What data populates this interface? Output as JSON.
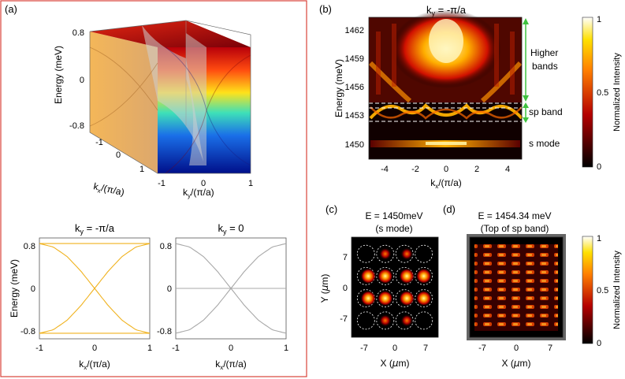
{
  "panels": {
    "a": {
      "label": "(a)",
      "surface": {
        "zlabel": "Energy (meV)",
        "zticks": [
          "0.8",
          "0",
          "-0.8"
        ],
        "xlabel_main": "k",
        "xlabel_sub": "x",
        "xlabel_tail": "/(π/a)",
        "xticks": [
          "-1",
          "0",
          "1"
        ],
        "ylabel_main": "k",
        "ylabel_sub": "y",
        "ylabel_tail": "/(π/a)",
        "yticks": [
          "-1",
          "0",
          "1"
        ]
      },
      "left_plot": {
        "title_main": "k",
        "title_sub": "y",
        "title_tail": " = -π/a",
        "ylabel": "Energy (meV)",
        "yticks": [
          "0.8",
          "0",
          "-0.8"
        ],
        "xticks": [
          "-1",
          "0",
          "1"
        ],
        "xlabel_main": "k",
        "xlabel_sub": "x",
        "xlabel_tail": "/(π/a)"
      },
      "right_plot": {
        "title_main": "k",
        "title_sub": "y",
        "title_tail": " = 0",
        "yticks": [
          "0.8",
          "0",
          "-0.8"
        ],
        "xticks": [
          "-1",
          "0",
          "1"
        ],
        "xlabel_main": "k",
        "xlabel_sub": "x",
        "xlabel_tail": "/(π/a)"
      }
    },
    "b": {
      "label": "(b)",
      "title_main": "k",
      "title_sub": "y",
      "title_tail": " = -π/a",
      "ylabel": "Energy (meV)",
      "yticks": [
        "1462",
        "1459",
        "1456",
        "1453",
        "1450"
      ],
      "xticks": [
        "-4",
        "-2",
        "0",
        "2",
        "4"
      ],
      "xlabel_main": "k",
      "xlabel_sub": "x",
      "xlabel_tail": "/(π/a)",
      "annotations": {
        "higher_line1": "Higher",
        "higher_line2": "bands",
        "sp": "sp band",
        "s": "s mode"
      },
      "colorbar": {
        "ticks": [
          "1",
          "0.5",
          "0"
        ],
        "label": "Normalized Intensity"
      }
    },
    "c": {
      "label": "(c)",
      "title_line1": "E = 1450meV",
      "title_line2": "(s mode)",
      "ylabel_main": "Y (",
      "ylabel_mu": "μ",
      "ylabel_tail": "m)",
      "yticks": [
        "7",
        "0",
        "-7"
      ],
      "xticks": [
        "-7",
        "0",
        "7"
      ],
      "xlabel_main": "X (",
      "xlabel_mu": "μ",
      "xlabel_tail": "m)"
    },
    "d": {
      "label": "(d)",
      "title_line1": "E = 1454.34 meV",
      "title_line2": "(Top of sp band)",
      "xticks": [
        "-7",
        "0",
        "7"
      ],
      "xlabel_main": "X (",
      "xlabel_mu": "μ",
      "xlabel_tail": "m)",
      "colorbar": {
        "ticks": [
          "1",
          "0.5",
          "0"
        ],
        "label": "Normalized Intensity"
      }
    }
  },
  "colors": {
    "frame_a": "#d9423a",
    "orange_band": "#f0b21e",
    "gray_band": "#a8a8a8",
    "green_arrow": "#3fc23f",
    "dashed": "#ffffff"
  },
  "chart_data": [
    {
      "type": "surface",
      "panel": "a-top",
      "x_range": [
        -1,
        1
      ],
      "y_range": [
        -1,
        1
      ],
      "z_range": [
        -0.8,
        0.8
      ],
      "description_values": {
        "band_max": 0.8,
        "band_min": -0.8
      }
    },
    {
      "type": "line",
      "panel": "a-bottom-left",
      "xlim": [
        -1,
        1
      ],
      "ylim": [
        -0.9,
        0.9
      ],
      "x": [
        -1,
        -0.75,
        -0.5,
        -0.25,
        0,
        0.25,
        0.5,
        0.75,
        1
      ],
      "series": [
        {
          "values": [
            0.8,
            0.8,
            0.8,
            0.8,
            0.8,
            0.8,
            0.8,
            0.8,
            0.8
          ]
        },
        {
          "values": [
            -0.8,
            -0.8,
            -0.8,
            -0.8,
            -0.8,
            -0.8,
            -0.8,
            -0.8,
            -0.8
          ]
        },
        {
          "values": [
            0.8,
            0.74,
            0.57,
            0.31,
            0,
            -0.31,
            -0.57,
            -0.74,
            -0.8
          ]
        },
        {
          "values": [
            -0.8,
            -0.74,
            -0.57,
            -0.31,
            0,
            0.31,
            0.57,
            0.74,
            0.8
          ]
        }
      ]
    },
    {
      "type": "line",
      "panel": "a-bottom-right",
      "xlim": [
        -1,
        1
      ],
      "ylim": [
        -0.9,
        0.9
      ],
      "x": [
        -1,
        -0.75,
        -0.5,
        -0.25,
        0,
        0.25,
        0.5,
        0.75,
        1
      ],
      "series": [
        {
          "values": [
            0,
            0,
            0,
            0,
            0,
            0,
            0,
            0,
            0
          ]
        },
        {
          "values": [
            -0.8,
            -0.74,
            -0.57,
            -0.31,
            0,
            0.31,
            0.57,
            0.74,
            0.8
          ]
        },
        {
          "values": [
            0.8,
            0.74,
            0.57,
            0.31,
            0,
            -0.31,
            -0.57,
            -0.74,
            -0.8
          ]
        }
      ]
    },
    {
      "type": "heatmap",
      "panel": "b",
      "xlim": [
        -5,
        5
      ],
      "ylim": [
        1448.5,
        1463.5
      ],
      "features": {
        "s_mode_energy": 1450,
        "sp_band_range": [
          1452.6,
          1454.2
        ],
        "higher_bands_range": [
          1455.2,
          1463.5
        ]
      }
    },
    {
      "type": "heatmap",
      "panel": "c",
      "xlim": [
        -9,
        9
      ],
      "ylim": [
        -9,
        9
      ],
      "lattice_positions": [
        -6,
        -2,
        2,
        6
      ]
    },
    {
      "type": "heatmap",
      "panel": "d",
      "xlim": [
        -9,
        9
      ],
      "ylim": [
        -9,
        9
      ]
    }
  ]
}
